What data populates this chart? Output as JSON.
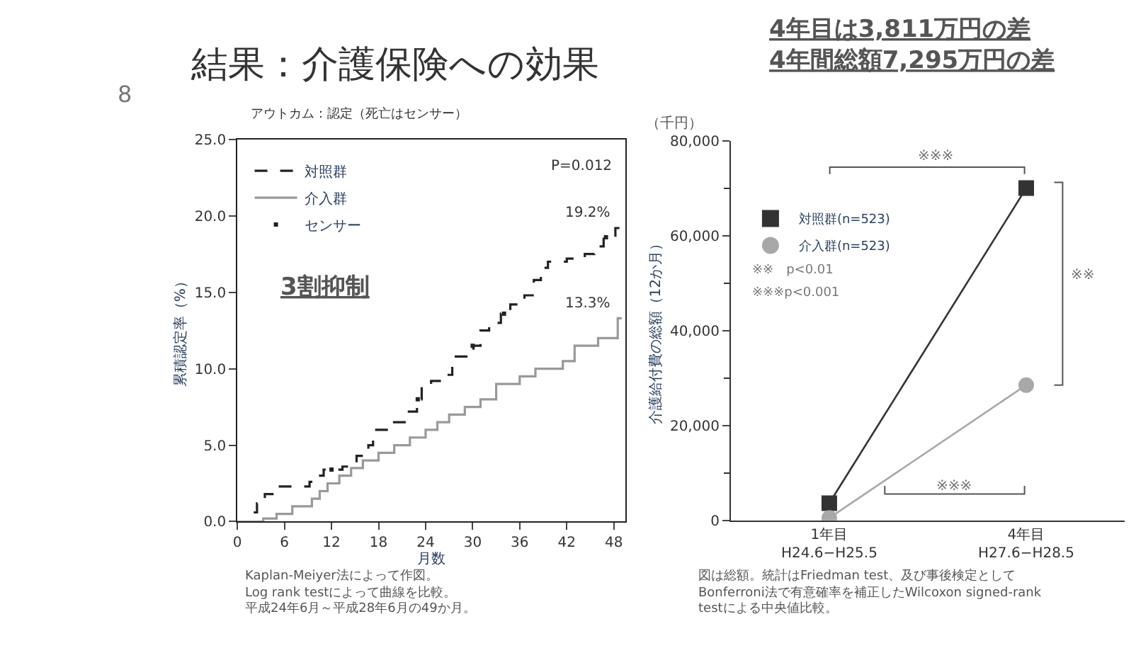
{
  "chart_data": [
    {
      "type": "step",
      "title": "アウトカム：認定（死亡はセンサー）",
      "xlabel": "月数",
      "ylabel": "累積認定率（%）",
      "xlim": [
        0,
        49.5
      ],
      "xticks": [
        0,
        6,
        12,
        18,
        24,
        30,
        36,
        42,
        48
      ],
      "ylim": [
        0,
        25
      ],
      "yticks": [
        {
          "value": 0,
          "label": "0.0"
        },
        {
          "value": 5,
          "label": "5.0"
        },
        {
          "value": 10,
          "label": "10.0"
        },
        {
          "value": 15,
          "label": "15.0"
        },
        {
          "value": 20,
          "label": "20.0"
        },
        {
          "value": 25,
          "label": "25.0"
        }
      ],
      "grid": false,
      "legend": "top left",
      "series": [
        {
          "name": "対照群",
          "color": "#222222",
          "line_style": "dashed",
          "x": [
            0,
            1.5,
            2.5,
            3.5,
            4.8,
            9.2,
            9.8,
            11,
            13.4,
            15.2,
            16.7,
            17.3,
            19.3,
            21.7,
            22.9,
            23.5,
            24.7,
            26.5,
            27.4,
            30.1,
            31,
            32.1,
            33.6,
            34.8,
            36.6,
            37.8,
            38.7,
            39.6,
            42,
            44.3,
            45.5,
            46.7,
            48.2,
            49
          ],
          "values": [
            0,
            0.6,
            1.2,
            1.8,
            2.3,
            2.6,
            3.0,
            3.4,
            3.6,
            4.3,
            5.0,
            6.0,
            6.5,
            7.2,
            8.0,
            8.8,
            9.2,
            9.6,
            10.8,
            11.5,
            12.5,
            13.0,
            13.6,
            14.2,
            14.8,
            15.8,
            16.6,
            17.0,
            17.2,
            17.5,
            18.0,
            18.6,
            19.2,
            19.2
          ]
        },
        {
          "name": "介入群",
          "color": "#999999",
          "line_style": "solid",
          "x": [
            0,
            3.3,
            5,
            7,
            9.5,
            10.5,
            11.5,
            13,
            14.5,
            16,
            18,
            20,
            22,
            24,
            25.5,
            27,
            29,
            31,
            33,
            36,
            38,
            41.5,
            43,
            46,
            48.5,
            49
          ],
          "values": [
            0,
            0.2,
            0.5,
            1.0,
            1.5,
            2.0,
            2.5,
            3.0,
            3.5,
            4.0,
            4.5,
            5.0,
            5.5,
            6.0,
            6.5,
            7.0,
            7.5,
            8.0,
            9.0,
            9.5,
            10.0,
            10.5,
            11.5,
            12.0,
            13.3,
            13.3
          ]
        },
        {
          "name": "センサー",
          "type": "scatter",
          "color": "#222222",
          "x": [
            12,
            23,
            30,
            34,
            47
          ],
          "values": [
            3.4,
            8.0,
            11.5,
            13.6,
            18.6
          ]
        }
      ],
      "annotations": [
        "8",
        "結果：介護保険への効果",
        "P=0.012",
        "3割抑制",
        {
          "text": "19.2%",
          "x": 48,
          "y": 19.2
        },
        {
          "text": "13.3%",
          "x": 48,
          "y": 13.3
        },
        "Kaplan-Meiyer法によって作図。",
        "Log rank testによって曲線を比較。",
        "平成24年6月～平成28年6月の49か月。"
      ]
    },
    {
      "type": "line",
      "title": "4年目は3,811万円の差\n4年間総額7,295万円の差",
      "ylabel": "介護給付費の総額（12か月）",
      "categories": [
        "1年目\nH24.6−H25.5",
        "4年目\nH27.6−H28.5"
      ],
      "ylim": [
        0,
        80000
      ],
      "yticks": [
        {
          "value": 0,
          "label": "0"
        },
        {
          "value": 10000,
          "label": null
        },
        {
          "value": 20000,
          "label": "20,000"
        },
        {
          "value": 30000,
          "label": null
        },
        {
          "value": 40000,
          "label": "40,000"
        },
        {
          "value": 50000,
          "label": null
        },
        {
          "value": 60000,
          "label": "60,000"
        },
        {
          "value": 70000,
          "label": null
        },
        {
          "value": 80000,
          "label": "80,000"
        }
      ],
      "grid": false,
      "legend": "top left",
      "series": [
        {
          "name": "対照群(n=523)",
          "color": "#333333",
          "marker": "square",
          "values": [
            3600,
            70000
          ]
        },
        {
          "name": "介入群(n=523)",
          "color": "#a8a8a8",
          "marker": "circle",
          "values": [
            500,
            28500
          ]
        }
      ],
      "annotations": [
        "（千円）",
        "※※　p<0.01",
        "※※※p<0.001",
        "※※※",
        "※※",
        "※※※",
        "図は総額。統計はFriedman test、及び事後検定として",
        "Bonferroni法で有意確率を補正したWilcoxon signed-rank",
        "testによる中央値比較。"
      ]
    }
  ]
}
